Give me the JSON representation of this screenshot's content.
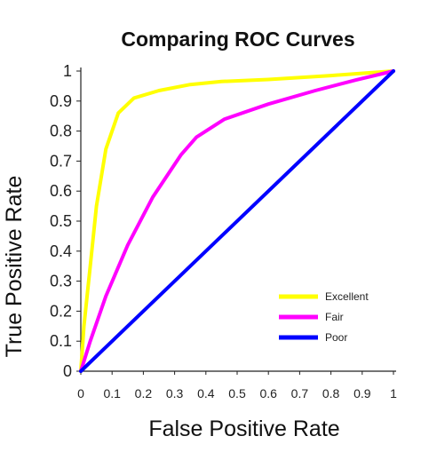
{
  "chart_data": {
    "type": "line",
    "title": "Comparing ROC Curves",
    "xlabel": "False Positive Rate",
    "ylabel": "True Positive Rate",
    "xlim": [
      0,
      1
    ],
    "ylim": [
      0,
      1
    ],
    "grid": false,
    "legend_position": "bottom-right",
    "x_tick_labels": [
      "0",
      "0.1",
      "0.2",
      "0.3",
      "0.4",
      "0.5",
      "0.6",
      "0.7",
      "0.8",
      "0.9",
      "1"
    ],
    "y_tick_labels": [
      "0",
      "0.1",
      "0.2",
      "0.3",
      "0.4",
      "0.5",
      "0.6",
      "0.7",
      "0.8",
      "0.9",
      "1"
    ],
    "series": [
      {
        "name": "Excellent",
        "color": "#ffff00",
        "x": [
          0,
          0.01,
          0.03,
          0.05,
          0.08,
          0.12,
          0.17,
          0.25,
          0.35,
          0.45,
          0.6,
          0.8,
          1.0
        ],
        "y": [
          0,
          0.15,
          0.35,
          0.55,
          0.74,
          0.86,
          0.91,
          0.935,
          0.955,
          0.965,
          0.972,
          0.985,
          1.0
        ]
      },
      {
        "name": "Fair",
        "color": "#ff00ff",
        "x": [
          0,
          0.03,
          0.08,
          0.15,
          0.23,
          0.32,
          0.37,
          0.46,
          0.6,
          0.75,
          0.88,
          1.0
        ],
        "y": [
          0,
          0.1,
          0.25,
          0.42,
          0.58,
          0.72,
          0.78,
          0.84,
          0.89,
          0.935,
          0.97,
          1.0
        ]
      },
      {
        "name": "Poor",
        "color": "#0000ff",
        "x": [
          0,
          1
        ],
        "y": [
          0,
          1
        ]
      }
    ]
  }
}
